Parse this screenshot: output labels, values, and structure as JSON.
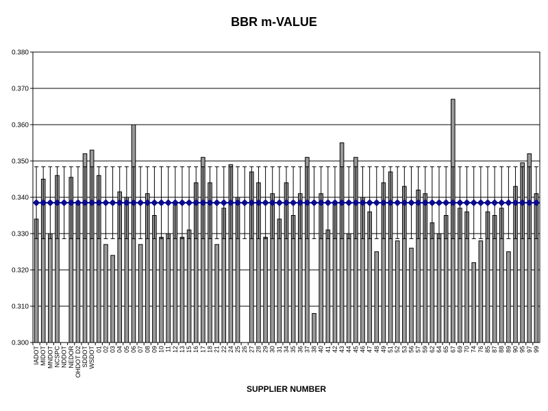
{
  "chart_data": {
    "type": "bar",
    "title": "BBR m-VALUE",
    "xlabel": "SUPPLIER NUMBER",
    "ylabel": "",
    "ylim": [
      0.3,
      0.38
    ],
    "y_ticks": [
      "0.300",
      "0.310",
      "0.320",
      "0.330",
      "0.340",
      "0.350",
      "0.360",
      "0.370",
      "0.380"
    ],
    "grid": true,
    "categories": [
      "IADOT",
      "MIDOT",
      "MNDOT",
      "NCSPC",
      "NDDOT",
      "NEDOR",
      "OHDOT D2",
      "SDDOT",
      "WSDOT",
      "01",
      "02",
      "03",
      "04",
      "05",
      "06",
      "07",
      "08",
      "09",
      "10",
      "11",
      "12",
      "13",
      "15",
      "16",
      "17",
      "18",
      "21",
      "22",
      "24",
      "25",
      "26",
      "27",
      "28",
      "29",
      "30",
      "31",
      "34",
      "35",
      "36",
      "37",
      "38",
      "40",
      "41",
      "42",
      "43",
      "44",
      "45",
      "46",
      "47",
      "48",
      "49",
      "51",
      "52",
      "53",
      "56",
      "57",
      "59",
      "62",
      "64",
      "65",
      "67",
      "69",
      "70",
      "74",
      "76",
      "85",
      "87",
      "88",
      "89",
      "90",
      "95",
      "97",
      "99"
    ],
    "values": [
      0.334,
      0.345,
      0.33,
      0.346,
      null,
      0.3455,
      0.338,
      0.352,
      0.353,
      0.346,
      0.327,
      0.324,
      0.3415,
      0.34,
      0.36,
      0.327,
      0.341,
      0.335,
      0.329,
      0.33,
      0.338,
      0.329,
      0.331,
      0.344,
      0.351,
      0.344,
      0.327,
      0.337,
      0.349,
      0.34,
      null,
      0.347,
      0.344,
      0.329,
      0.341,
      0.334,
      0.344,
      0.335,
      0.341,
      0.351,
      0.308,
      0.341,
      0.331,
      0.338,
      0.355,
      0.33,
      0.351,
      0.34,
      0.336,
      0.325,
      0.344,
      0.347,
      0.328,
      0.343,
      0.326,
      0.342,
      0.341,
      0.333,
      0.33,
      0.335,
      0.367,
      0.337,
      0.336,
      0.322,
      0.328,
      0.336,
      0.335,
      0.337,
      0.325,
      0.343,
      0.3495,
      0.352,
      0.341
    ],
    "mean_line": {
      "value": 0.3385,
      "color": "#0b0b8c",
      "marker": "diamond"
    },
    "error_band": {
      "upper": 0.3484,
      "lower": 0.3286
    },
    "bar_color": "#999999"
  }
}
